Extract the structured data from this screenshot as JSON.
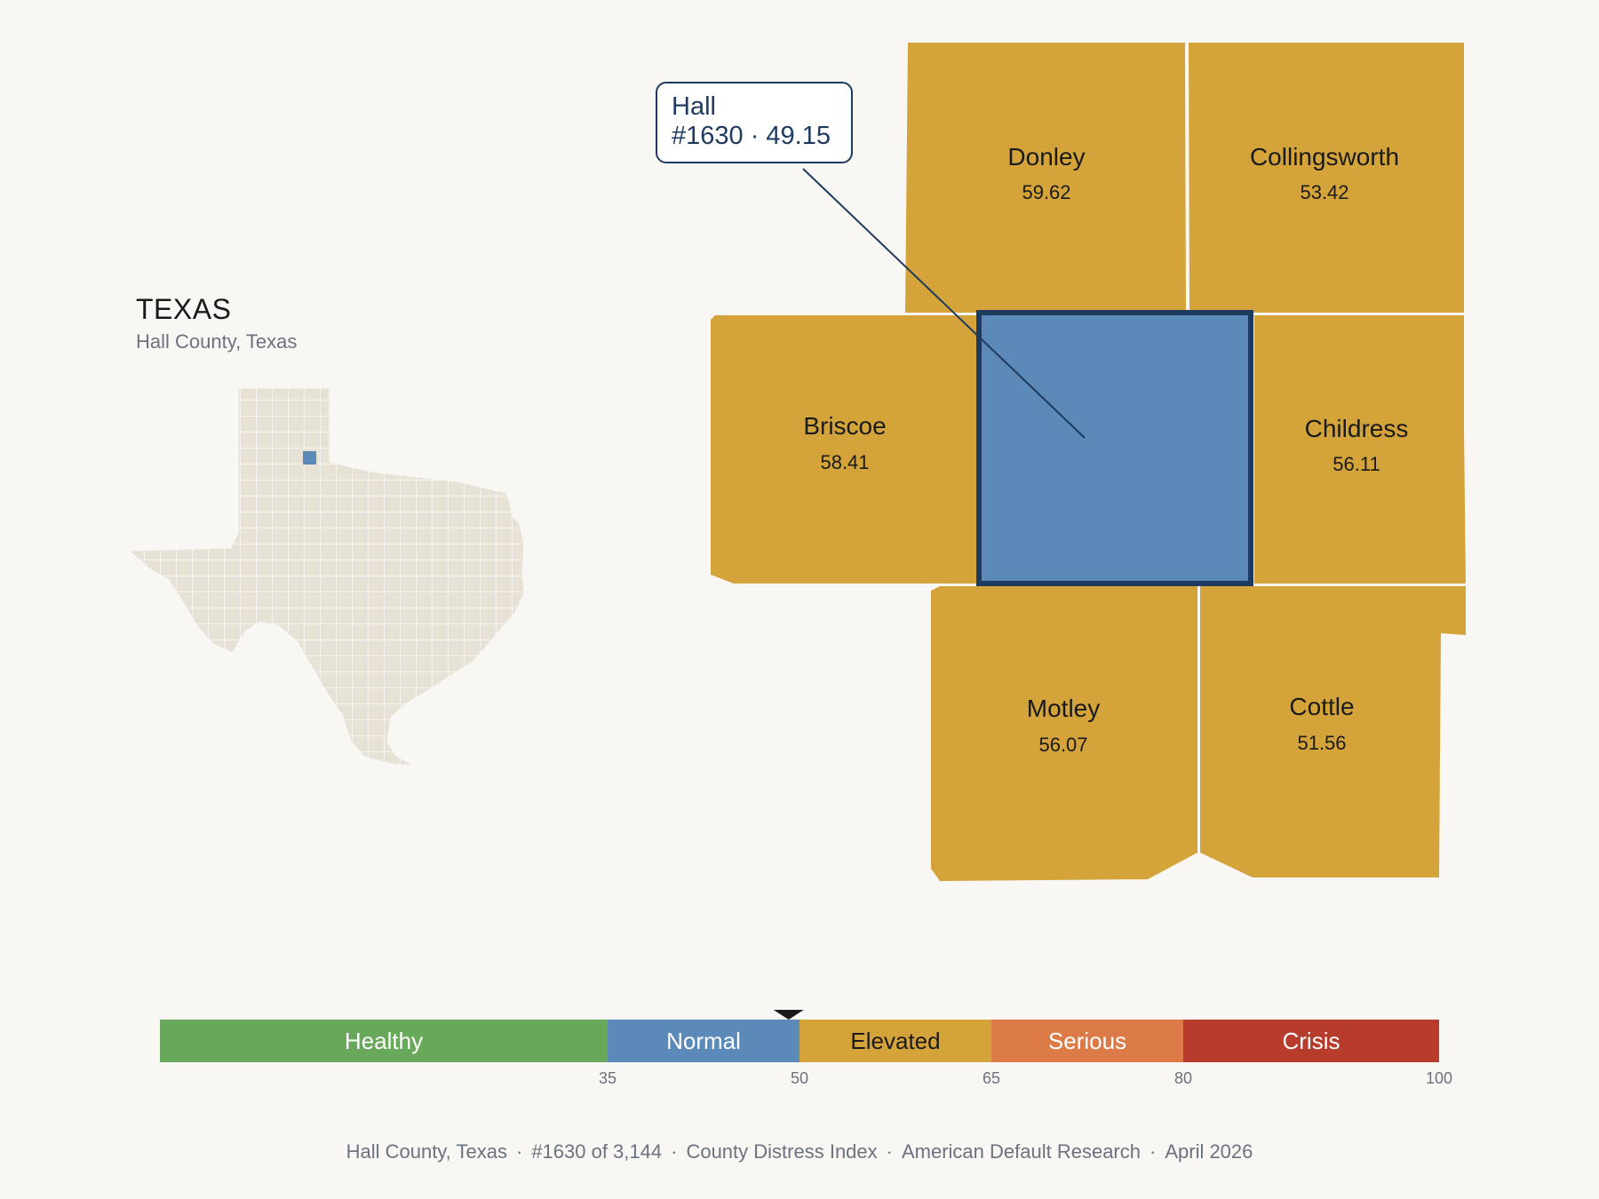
{
  "header": {
    "state": "TEXAS",
    "subtitle": "Hall County, Texas"
  },
  "colors": {
    "background": "#f9f7f3",
    "elevated": "#d4a43a",
    "normal": "#5b8ab9",
    "outline": "#1e3a5f",
    "inset_fill": "#e8e2d6"
  },
  "focus": {
    "name": "Hall",
    "rank_line": "#1630 · 49.15",
    "score": 49.15,
    "category": "Normal"
  },
  "neighbors": [
    {
      "name": "Donley",
      "value": "59.62"
    },
    {
      "name": "Collingsworth",
      "value": "53.42"
    },
    {
      "name": "Briscoe",
      "value": "58.41"
    },
    {
      "name": "Childress",
      "value": "56.11"
    },
    {
      "name": "Motley",
      "value": "56.07"
    },
    {
      "name": "Cottle",
      "value": "51.56"
    }
  ],
  "scale": {
    "min": 0,
    "max": 100,
    "bands": [
      {
        "label": "Healthy",
        "from": 0,
        "to": 35,
        "color": "#68a85a",
        "text_color": "#ffffff"
      },
      {
        "label": "Normal",
        "from": 35,
        "to": 50,
        "color": "#5b8ab9",
        "text_color": "#ffffff"
      },
      {
        "label": "Elevated",
        "from": 50,
        "to": 65,
        "color": "#d4a43a",
        "text_color": "#1a1a1a"
      },
      {
        "label": "Serious",
        "from": 65,
        "to": 80,
        "color": "#dc7a48",
        "text_color": "#ffffff"
      },
      {
        "label": "Crisis",
        "from": 80,
        "to": 100,
        "color": "#b83c2c",
        "text_color": "#ffffff"
      }
    ],
    "ticks": [
      "35",
      "50",
      "65",
      "80",
      "100"
    ],
    "marker_value": 49.15
  },
  "footer": {
    "county": "Hall County, Texas",
    "rank": "#1630 of 3,144",
    "index": "County Distress Index",
    "source": "American Default Research",
    "date": "April 2026"
  }
}
